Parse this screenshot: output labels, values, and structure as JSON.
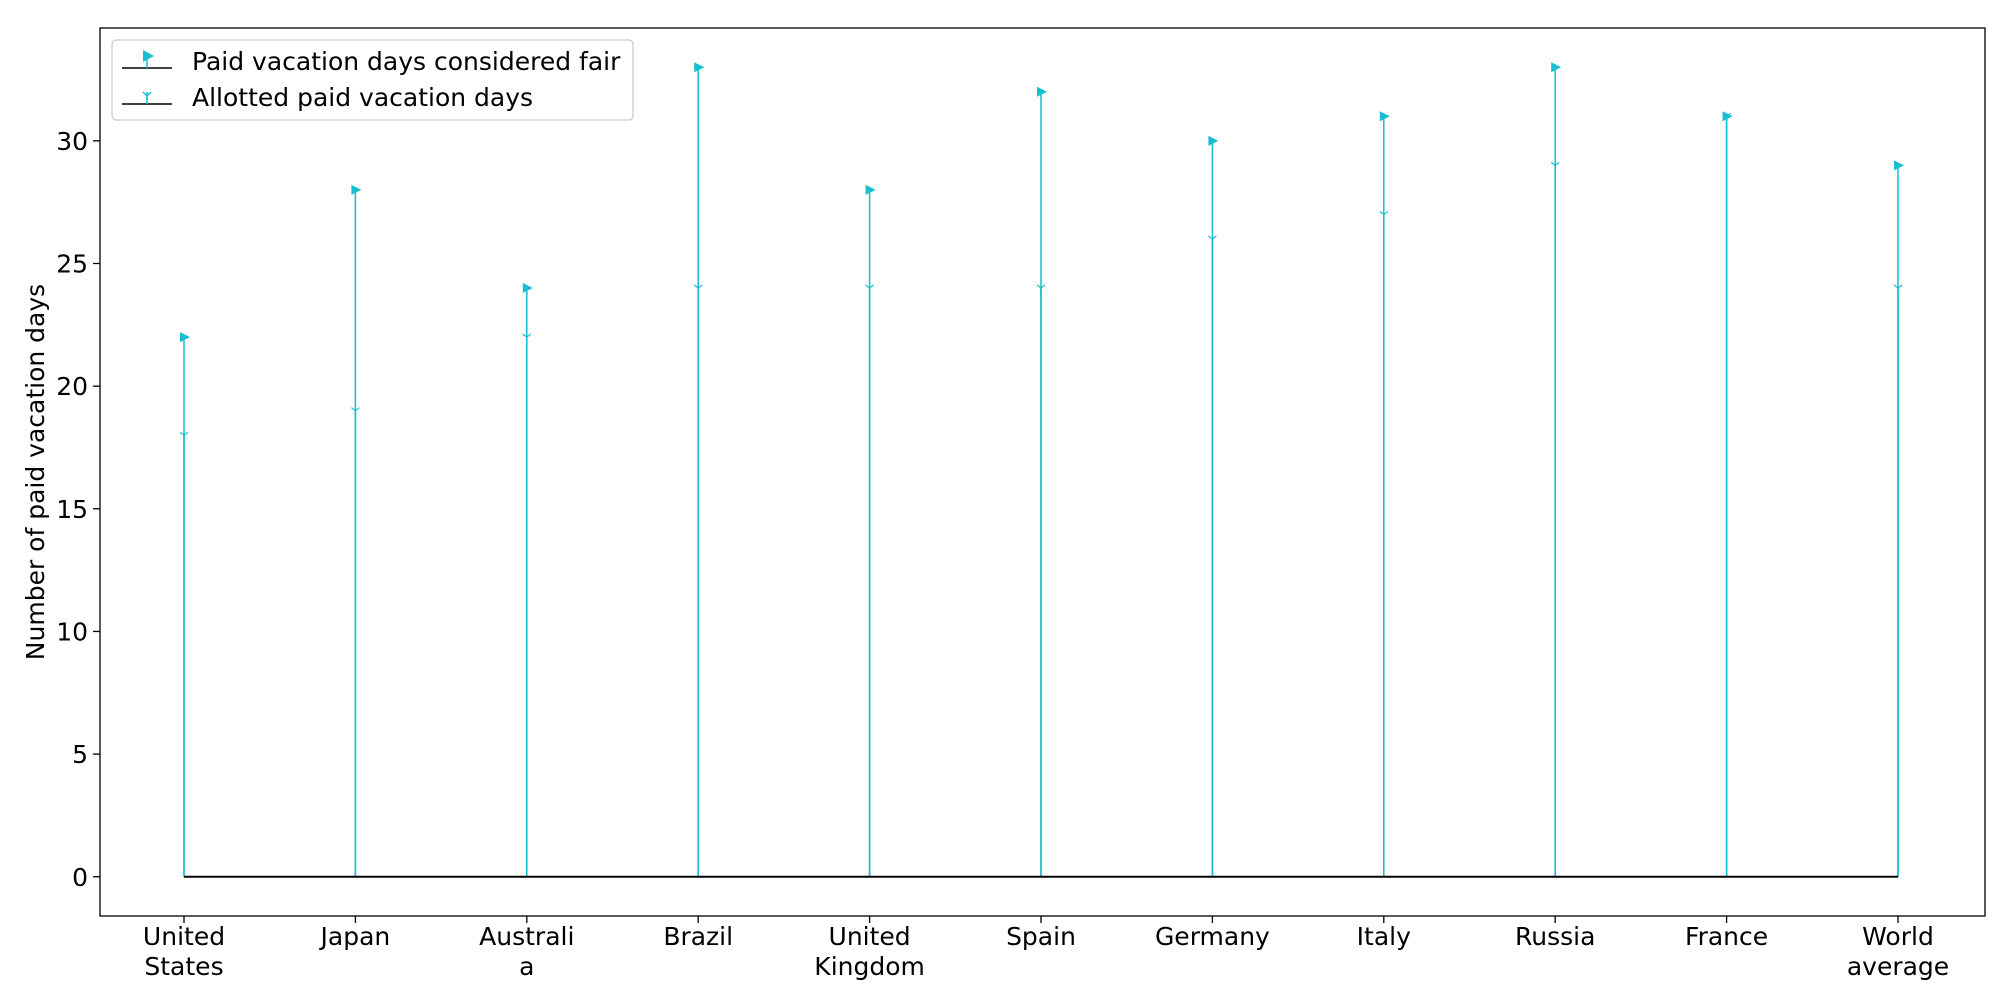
{
  "chart_data": {
    "type": "stem",
    "categories": [
      [
        "United",
        "States"
      ],
      [
        "Japan"
      ],
      [
        "Australi",
        "a"
      ],
      [
        "Brazil"
      ],
      [
        "United",
        "Kingdom"
      ],
      [
        "Spain"
      ],
      [
        "Germany"
      ],
      [
        "Italy"
      ],
      [
        "Russia"
      ],
      [
        "France"
      ],
      [
        "World",
        "average"
      ]
    ],
    "series": [
      {
        "name": "Paid vacation days considered fair",
        "marker": "triangle-right",
        "values": [
          22,
          28,
          24,
          33,
          28,
          32,
          30,
          31,
          33,
          31,
          29
        ]
      },
      {
        "name": "Allotted paid vacation days",
        "marker": "tri-down",
        "values": [
          18,
          19,
          22,
          24,
          24,
          24,
          26,
          27,
          29,
          31,
          24
        ]
      }
    ],
    "title": "",
    "xlabel": "",
    "ylabel": "Number of paid vacation days",
    "ylim": [
      -1.6,
      34.6
    ],
    "yticks": [
      0,
      5,
      10,
      15,
      20,
      25,
      30
    ],
    "grid": false,
    "legend_position": "top-left",
    "colors": {
      "stem": "#17becf",
      "baseline": "#000000"
    }
  }
}
